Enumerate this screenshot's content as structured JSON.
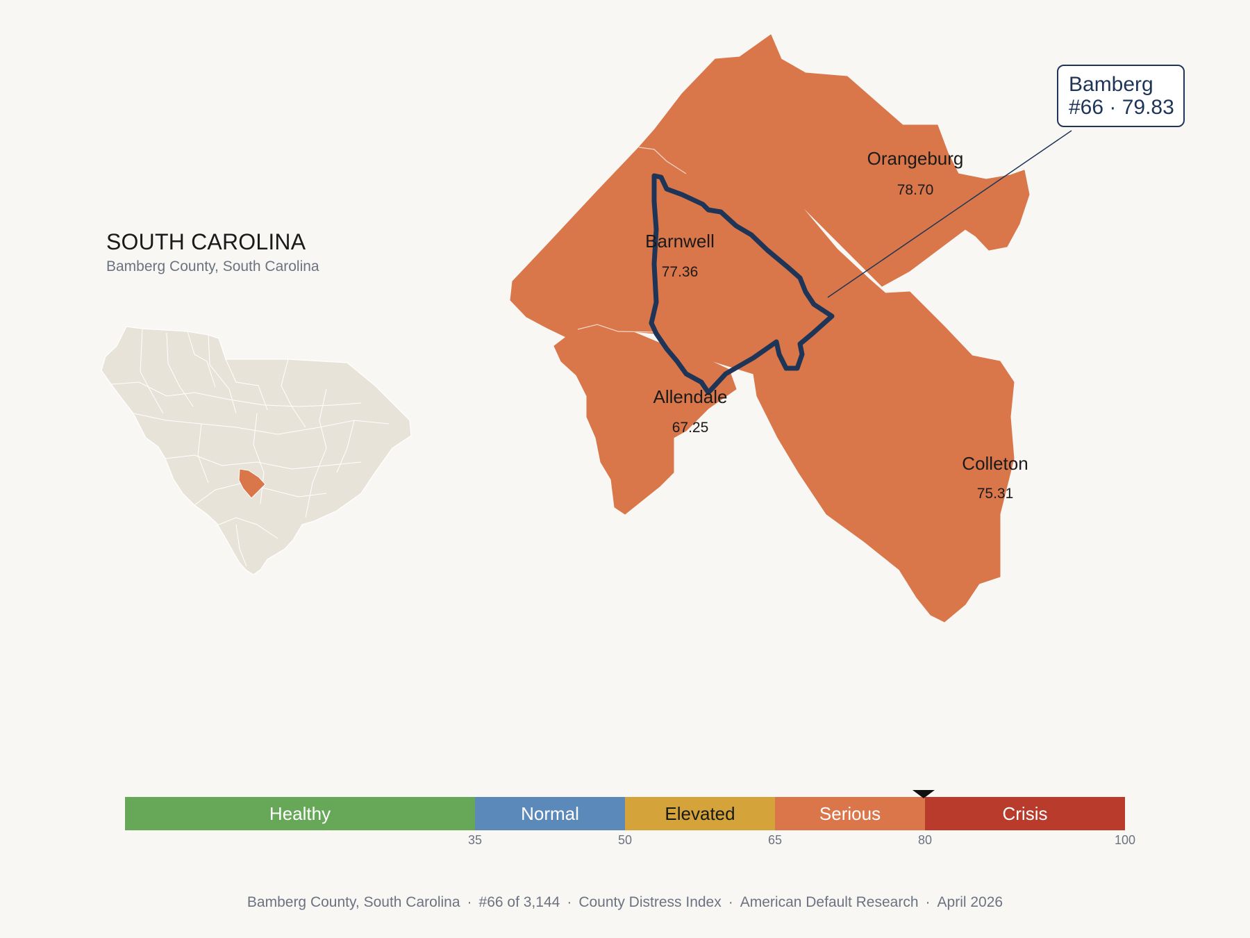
{
  "state": {
    "title": "SOUTH CAROLINA",
    "subtitle": "Bamberg County, South Carolina"
  },
  "colors": {
    "background": "#f9f7f4",
    "county_fill": "#d9764a",
    "highlight_border": "#1e3557",
    "locator_fill": "#e8e3d8"
  },
  "counties": [
    {
      "name": "Orangeburg",
      "value": "78.70"
    },
    {
      "name": "Barnwell",
      "value": "77.36"
    },
    {
      "name": "Allendale",
      "value": "67.25"
    },
    {
      "name": "Colleton",
      "value": "75.31"
    }
  ],
  "callout": {
    "county": "Bamberg",
    "rank_value": "#66 · 79.83"
  },
  "scale": {
    "min": 0,
    "max": 100,
    "marker_value": 79.83,
    "segments": [
      {
        "label": "Healthy",
        "from": 0,
        "to": 35,
        "color": "#67a758"
      },
      {
        "label": "Normal",
        "from": 35,
        "to": 50,
        "color": "#5b89b9"
      },
      {
        "label": "Elevated",
        "from": 50,
        "to": 65,
        "color": "#d4a33a"
      },
      {
        "label": "Serious",
        "from": 65,
        "to": 80,
        "color": "#db764a"
      },
      {
        "label": "Crisis",
        "from": 80,
        "to": 100,
        "color": "#b83b2c"
      }
    ],
    "ticks": [
      "35",
      "50",
      "65",
      "80",
      "100"
    ]
  },
  "footer": {
    "items": [
      "Bamberg County, South Carolina",
      "#66 of 3,144",
      "County Distress Index",
      "American Default Research",
      "April 2026"
    ],
    "separator": "·"
  }
}
